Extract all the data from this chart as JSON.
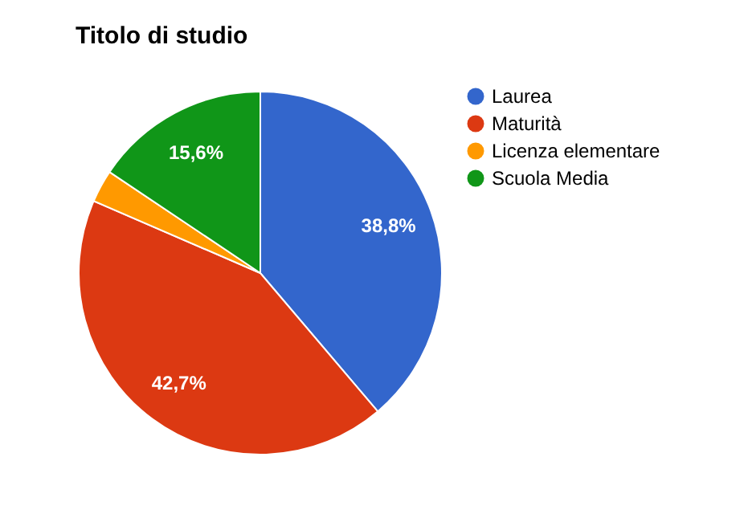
{
  "chart_data": {
    "type": "pie",
    "title": "Titolo di studio",
    "categories": [
      "Laurea",
      "Maturità",
      "Licenza elementare",
      "Scuola Media"
    ],
    "values": [
      38.8,
      42.7,
      2.9,
      15.6
    ],
    "value_labels": [
      "38,8%",
      "42,7%",
      null,
      "15,6%"
    ],
    "colors": [
      "#3366cc",
      "#dc3912",
      "#ff9900",
      "#109618"
    ],
    "legend": "right"
  }
}
